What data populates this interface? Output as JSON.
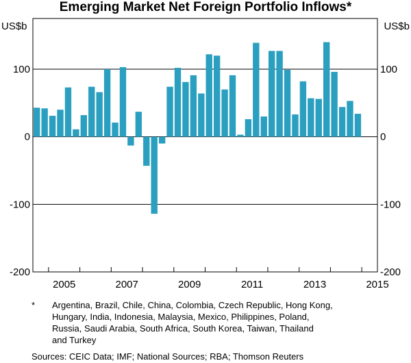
{
  "chart_data": {
    "type": "bar",
    "title": "Emerging Market Net Foreign Portfolio Inflows*",
    "ylabel_left": "US$b",
    "ylabel_right": "US$b",
    "ylim": [
      -200,
      175
    ],
    "yticks": [
      100,
      0,
      -100,
      -200
    ],
    "ytick_labels": [
      "100",
      "0",
      "-100",
      "-200"
    ],
    "xlim": [
      2004.5,
      2015.5
    ],
    "xtick_labels": [
      {
        "label": "2005",
        "year": 2005
      },
      {
        "label": "2007",
        "year": 2007
      },
      {
        "label": "2009",
        "year": 2009
      },
      {
        "label": "2011",
        "year": 2011
      },
      {
        "label": "2013",
        "year": 2013
      },
      {
        "label": "2015",
        "year": 2015
      }
    ],
    "bar_color": "#2a9fbf",
    "frequency": "quarterly",
    "start": "2004 Q3",
    "values": [
      43,
      42,
      31,
      40,
      73,
      11,
      32,
      74,
      66,
      100,
      21,
      103,
      -13,
      37,
      -43,
      -114,
      -10,
      74,
      102,
      81,
      91,
      64,
      122,
      120,
      70,
      91,
      3,
      26,
      139,
      30,
      127,
      127,
      99,
      33,
      82,
      57,
      56,
      140,
      96,
      44,
      53,
      34
    ]
  },
  "footnote": {
    "mark": "*",
    "lines": [
      "Argentina, Brazil, Chile, China, Colombia, Czech Republic, Hong Kong,",
      "Hungary, India, Indonesia, Malaysia, Mexico, Philippines, Poland,",
      "Russia, Saudi Arabia, South Africa, South Korea, Taiwan, Thailand",
      "and Turkey"
    ]
  },
  "sources": "Sources:   CEIC Data; IMF; National Sources; RBA; Thomson Reuters"
}
